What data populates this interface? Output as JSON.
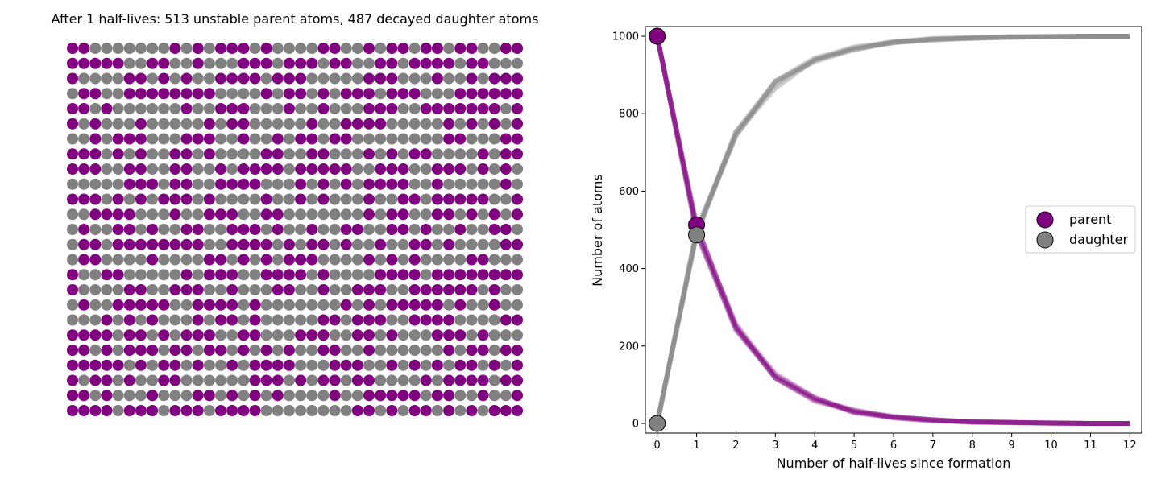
{
  "colors": {
    "parent": "#800080",
    "daughter": "#808080"
  },
  "chart_data": [
    {
      "type": "scatter",
      "title": "After 1 half-lives: 513 unstable parent atoms, 487 decayed daughter atoms",
      "grid": {
        "rows": 25,
        "cols": 40
      },
      "counts": {
        "parent": 513,
        "daughter": 487
      },
      "axes_visible": false
    },
    {
      "type": "line",
      "xlabel": "Number of half-lives since formation",
      "ylabel": "Number of atoms",
      "xlim": [
        -0.3,
        12.3
      ],
      "ylim": [
        -25,
        1025
      ],
      "xticks": [
        "0",
        "1",
        "2",
        "3",
        "4",
        "5",
        "6",
        "7",
        "8",
        "9",
        "10",
        "11",
        "12"
      ],
      "yticks": [
        "0",
        "200",
        "400",
        "600",
        "800",
        "1000"
      ],
      "x": [
        0,
        1,
        2,
        3,
        4,
        5,
        6,
        7,
        8,
        9,
        10,
        11,
        12
      ],
      "series": [
        {
          "name": "parent",
          "values": [
            1000,
            500,
            250,
            125,
            62,
            31,
            16,
            8,
            4,
            2,
            1,
            0,
            0
          ]
        },
        {
          "name": "daughter",
          "values": [
            0,
            500,
            750,
            875,
            938,
            969,
            984,
            992,
            996,
            998,
            999,
            1000,
            1000
          ]
        }
      ],
      "markers": {
        "parent": [
          [
            0,
            1000
          ],
          [
            1,
            513
          ]
        ],
        "daughter": [
          [
            0,
            0
          ],
          [
            1,
            487
          ]
        ]
      },
      "legend": {
        "placement": "center-right",
        "entries": [
          "parent",
          "daughter"
        ]
      }
    }
  ]
}
